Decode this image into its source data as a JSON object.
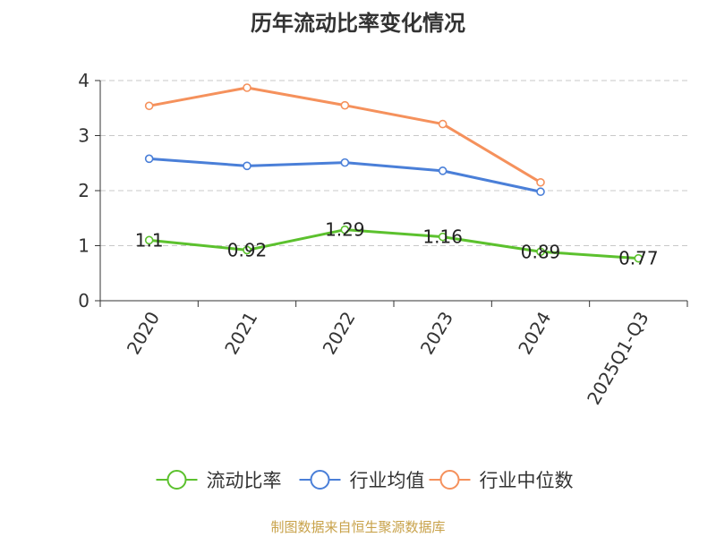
{
  "chart_data": {
    "type": "line",
    "title": "历年流动比率变化情况",
    "categories": [
      "2020",
      "2021",
      "2022",
      "2023",
      "2024",
      "2025Q1-Q3"
    ],
    "ylim": [
      0,
      4
    ],
    "yticks": [
      0,
      1,
      2,
      3,
      4
    ],
    "grid": true,
    "legend_position": "bottom",
    "series": [
      {
        "name": "流动比率",
        "color": "#5cc12e",
        "values": [
          1.1,
          0.92,
          1.29,
          1.16,
          0.89,
          0.77
        ],
        "labels": [
          "1.1",
          "0.92",
          "1.29",
          "1.16",
          "0.89",
          "0.77"
        ]
      },
      {
        "name": "行业均值",
        "color": "#4a7fd8",
        "values": [
          2.58,
          2.45,
          2.51,
          2.36,
          1.98,
          null
        ]
      },
      {
        "name": "行业中位数",
        "color": "#f5915c",
        "values": [
          3.54,
          3.87,
          3.55,
          3.21,
          2.15,
          null
        ]
      }
    ]
  },
  "footer": {
    "source": "制图数据来自恒生聚源数据库"
  }
}
